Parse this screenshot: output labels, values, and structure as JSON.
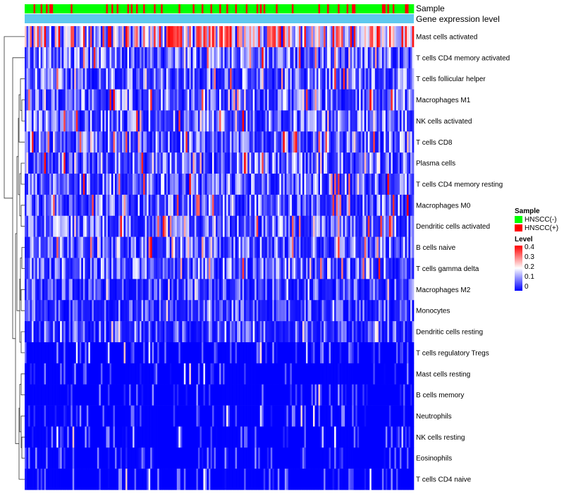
{
  "chart_data": {
    "type": "heatmap",
    "annotation_tracks": [
      {
        "label": "Sample",
        "kind": "categorical"
      },
      {
        "label": "Gene expression level",
        "kind": "constant",
        "color": "#5ec8ee"
      }
    ],
    "rows": [
      "Mast cells activated",
      "T cells CD4 memory activated",
      "T cells follicular helper",
      "Macrophages M1",
      "NK cells activated",
      "T cells CD8",
      "Plasma cells",
      "T cells CD4 memory resting",
      "Macrophages M0",
      "Dendritic cells activated",
      "B cells naive",
      "T cells gamma delta",
      "Macrophages M2",
      "Monocytes",
      "Dendritic cells resting",
      "T cells regulatory  Tregs",
      "Mast cells resting",
      "B cells memory",
      "Neutrophils",
      "NK cells resting",
      "Eosinophils",
      "T cells CD4 naive"
    ],
    "row_mean_level": [
      0.3,
      0.12,
      0.1,
      0.1,
      0.09,
      0.08,
      0.11,
      0.09,
      0.09,
      0.08,
      0.07,
      0.08,
      0.06,
      0.05,
      0.05,
      0.03,
      0.02,
      0.02,
      0.02,
      0.02,
      0.02,
      0.01
    ],
    "n_samples": 220,
    "sample_groups": {
      "HNSCC(-)": 180,
      "HNSCC(+)": 40
    },
    "scale_range": [
      0,
      0.4
    ],
    "legend": {
      "sample_title": "Sample",
      "sample_entries": [
        {
          "label": "HNSCC(-)",
          "color": "#00ff00"
        },
        {
          "label": "HNSCC(+)",
          "color": "#ff0000"
        }
      ],
      "level_title": "Level",
      "level_ticks": [
        "0.4",
        "0.3",
        "0.2",
        "0.1",
        "0"
      ],
      "level_colors": {
        "low": "#0000ff",
        "mid": "#ffffff",
        "high": "#ff0000"
      }
    }
  }
}
